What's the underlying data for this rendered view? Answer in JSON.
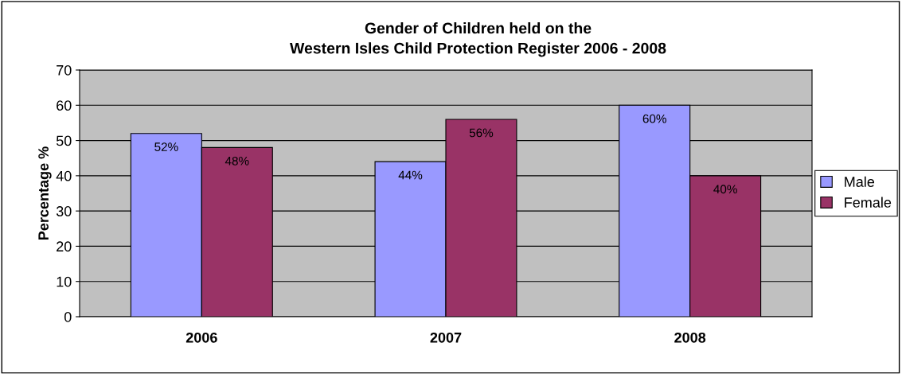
{
  "chart_data": {
    "type": "bar",
    "title": "Gender of Children held on the\nWestern Isles Child Protection Register 2006 - 2008",
    "ylabel": "Percentage %",
    "categories": [
      "2006",
      "2007",
      "2008"
    ],
    "series": [
      {
        "name": "Male",
        "color": "#9999ff",
        "values": [
          52,
          44,
          60
        ],
        "value_labels": [
          "52%",
          "44%",
          "60%"
        ]
      },
      {
        "name": "Female",
        "color": "#993366",
        "values": [
          48,
          56,
          40
        ],
        "value_labels": [
          "48%",
          "56%",
          "40%"
        ]
      }
    ],
    "ylim": [
      0,
      70
    ],
    "yticks": [
      0,
      10,
      20,
      30,
      40,
      50,
      60,
      70
    ],
    "grid": "y",
    "legend": "right"
  }
}
